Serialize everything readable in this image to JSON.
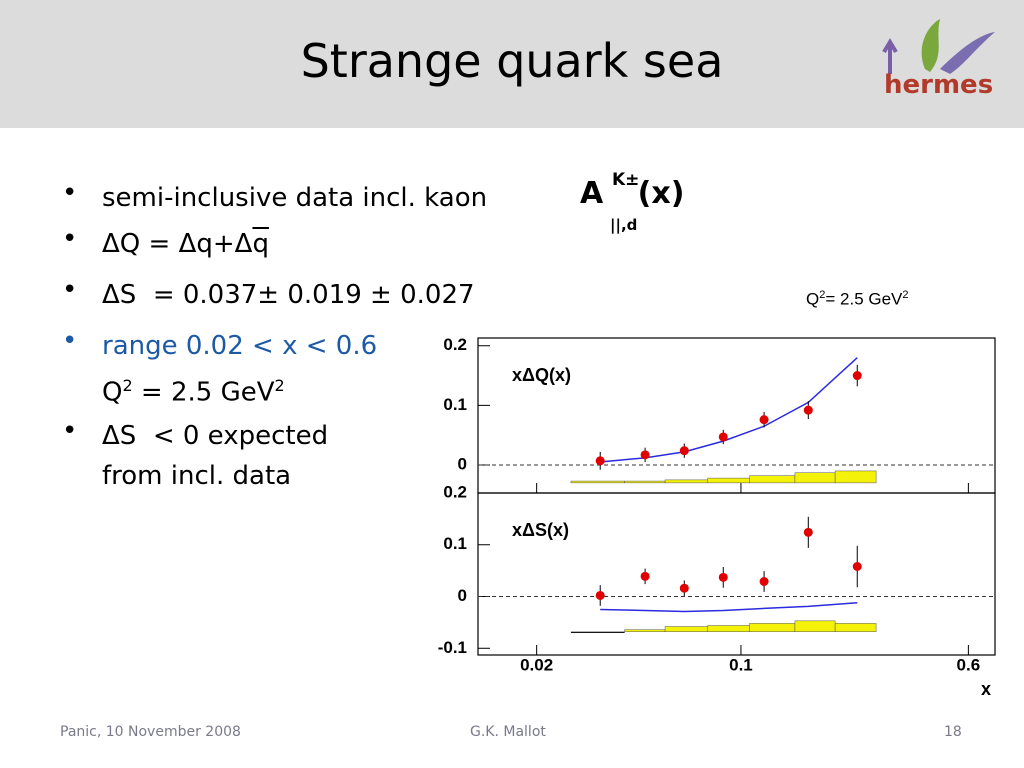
{
  "header": {
    "title": "Strange quark sea",
    "logo": "hermes"
  },
  "bullets": [
    {
      "lines": [
        [
          "semi-inclusive data incl. kaon"
        ]
      ]
    },
    {
      "lines": [
        [
          "ΔQ = Δq+Δ",
          "q"
        ]
      ]
    },
    {
      "lines": [
        [
          "ΔS  = 0.037± 0.019 ± 0.027"
        ]
      ]
    },
    {
      "lines": [
        [
          "range 0.02 < x < 0.6"
        ],
        [
          "Q",
          "2",
          " = 2.5 GeV",
          "2"
        ]
      ]
    },
    {
      "lines": [
        [
          "ΔS  < 0 expected"
        ],
        [
          "from incl. data"
        ]
      ]
    }
  ],
  "formula": {
    "base": "A",
    "sup": "K±",
    "sub": "||,d",
    "arg": "(x)"
  },
  "chart_note": [
    "Q",
    "2",
    "= 2.5 GeV",
    "2"
  ],
  "footer": {
    "left": "Panic, 10 November 2008",
    "center": "G.K. Mallot",
    "right": "18"
  },
  "chart_data": [
    {
      "type": "scatter",
      "label": "xΔQ(x)",
      "log_x": true,
      "zero_line": true,
      "xlim": [
        0.0126,
        0.74
      ],
      "xticks": [
        0.02,
        0.1,
        0.6
      ],
      "ylim": [
        -0.047,
        0.213
      ],
      "yticks": [
        0,
        0.1,
        0.2
      ],
      "x": [
        0.033,
        0.047,
        0.064,
        0.087,
        0.12,
        0.17,
        0.25
      ],
      "values": [
        0.007,
        0.017,
        0.024,
        0.047,
        0.076,
        0.092,
        0.15
      ],
      "errors": [
        0.015,
        0.012,
        0.012,
        0.012,
        0.013,
        0.015,
        0.018
      ],
      "curve": [
        0.005,
        0.012,
        0.022,
        0.04,
        0.065,
        0.105,
        0.18
      ],
      "band_edges": [
        0.0262,
        0.04,
        0.055,
        0.077,
        0.107,
        0.153,
        0.21,
        0.29
      ],
      "band": [
        0.003,
        0.003,
        0.005,
        0.008,
        0.012,
        0.017,
        0.02
      ],
      "band_base": -0.03,
      "point_color": "#e00000",
      "curve_color": "#2a2ae0",
      "band_color": "#f5f20a"
    },
    {
      "type": "scatter",
      "label": "xΔS(x)",
      "log_x": true,
      "zero_line": true,
      "xlabel": "x",
      "xlim": [
        0.0126,
        0.74
      ],
      "xticks": [
        0.02,
        0.1,
        0.6
      ],
      "ylim": [
        -0.113,
        0.2
      ],
      "yticks": [
        -0.1,
        0,
        0.1,
        0.2
      ],
      "x": [
        0.033,
        0.047,
        0.064,
        0.087,
        0.12,
        0.17,
        0.25
      ],
      "values": [
        0.002,
        0.039,
        0.016,
        0.037,
        0.029,
        0.124,
        0.058
      ],
      "errors": [
        0.02,
        0.015,
        0.015,
        0.02,
        0.02,
        0.03,
        0.04
      ],
      "curve": [
        -0.025,
        -0.027,
        -0.029,
        -0.027,
        -0.023,
        -0.019,
        -0.012
      ],
      "band_edges": [
        0.0262,
        0.04,
        0.055,
        0.077,
        0.107,
        0.153,
        0.21,
        0.29
      ],
      "band": [
        0,
        0.004,
        0.01,
        0.012,
        0.016,
        0.021,
        0.016
      ],
      "band_base": -0.068,
      "point_color": "#e00000",
      "curve_color": "#2a2ae0",
      "band_color": "#f5f20a"
    }
  ]
}
